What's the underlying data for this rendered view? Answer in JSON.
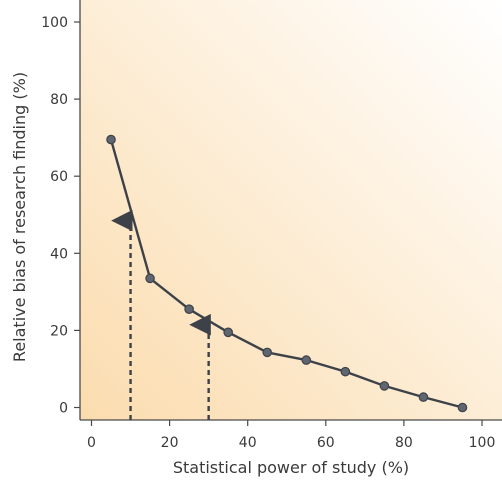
{
  "chart_data": {
    "type": "line",
    "title": "",
    "xlabel": "Statistical power of study (%)",
    "ylabel": "Relative bias of research finding (%)",
    "xlim": [
      0,
      100
    ],
    "ylim": [
      0,
      100
    ],
    "x_ticks": [
      "0",
      "20",
      "40",
      "60",
      "80",
      "100"
    ],
    "y_ticks": [
      "0",
      "20",
      "40",
      "60",
      "80",
      "100"
    ],
    "grid": false,
    "legend": "none",
    "series": [
      {
        "x": [
          5,
          15,
          25,
          35,
          45,
          55,
          65,
          75,
          85,
          95
        ],
        "y": [
          69.5,
          33.5,
          25.5,
          19.5,
          14.3,
          12.3,
          9.3,
          5.6,
          2.7,
          0
        ]
      }
    ],
    "annotations": [
      {
        "type": "dashed-arrow",
        "x": 10,
        "y_from": 0,
        "y_to": 49
      },
      {
        "type": "dashed-arrow",
        "x": 30,
        "y_from": 0,
        "y_to": 22
      }
    ],
    "colors": {
      "line": "#3d4148",
      "marker_fill": "#5f6670",
      "background_warm": "#fbdcae",
      "background_light": "#ffffff",
      "axis": "#4a4a4a",
      "text": "#3a3a3a"
    }
  }
}
